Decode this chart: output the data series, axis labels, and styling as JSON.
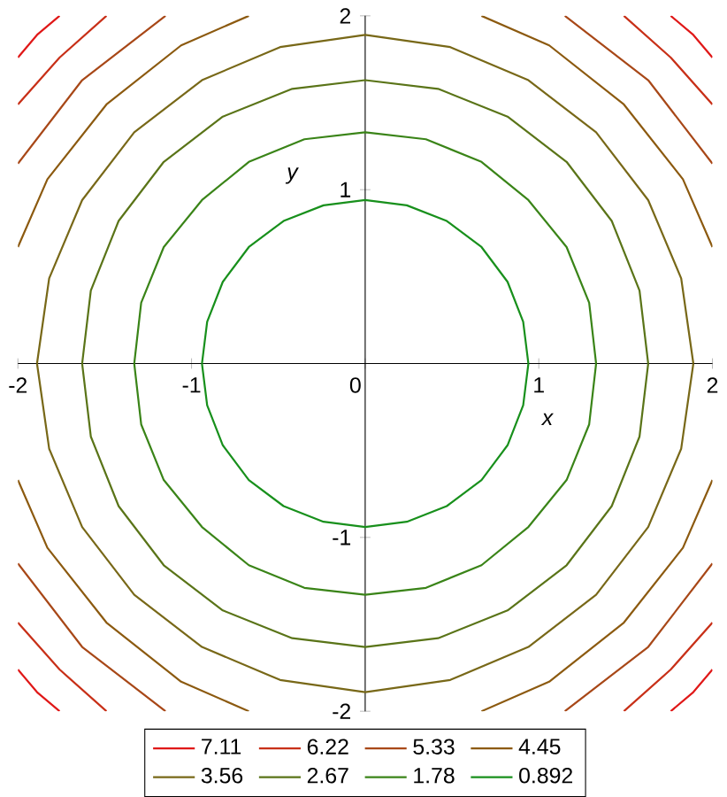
{
  "chart_data": {
    "type": "line",
    "xlabel": "x",
    "ylabel": "y",
    "xlim": [
      -2,
      2
    ],
    "ylim": [
      -2,
      2
    ],
    "xticks": [
      -2,
      -1,
      0,
      1,
      2
    ],
    "yticks": [
      -2,
      -1,
      1,
      2
    ],
    "grid": false,
    "legend": "bottom",
    "marker": "none",
    "line_style": "solid",
    "series": [
      {
        "name": "7.11",
        "color": "#e01818",
        "x": [
          2,
          1.89,
          1.76,
          null,
          -2,
          -1.89,
          -1.76,
          null,
          -2,
          -1.89,
          -1.76,
          null,
          2,
          1.89,
          1.76
        ],
        "values": [
          1.76,
          1.89,
          2,
          null,
          1.76,
          1.89,
          2,
          null,
          -1.76,
          -1.89,
          -2,
          null,
          -1.76,
          -1.89,
          -2
        ]
      },
      {
        "name": "6.22",
        "color": "#c83018",
        "x": [
          2,
          1.76,
          1.49,
          null,
          -2,
          -1.76,
          -1.49,
          null,
          -2,
          -1.76,
          -1.49,
          null,
          2,
          1.76,
          1.49
        ],
        "values": [
          1.49,
          1.76,
          2,
          null,
          1.49,
          1.76,
          2,
          null,
          -1.49,
          -1.76,
          -2,
          null,
          -1.49,
          -1.76,
          -2
        ]
      },
      {
        "name": "5.33",
        "color": "#a84818",
        "x": [
          2,
          1.63,
          1.15,
          null,
          -2,
          -1.63,
          -1.15,
          null,
          -2,
          -1.63,
          -1.15,
          null,
          2,
          1.63,
          1.15
        ],
        "values": [
          1.15,
          1.63,
          2,
          null,
          1.15,
          1.63,
          2,
          null,
          -1.15,
          -1.63,
          -2,
          null,
          -1.15,
          -1.63,
          -2
        ]
      },
      {
        "name": "4.45",
        "color": "#8c5a10",
        "x": [
          2,
          1.83,
          1.49,
          1.06,
          0.67,
          null,
          -2,
          -1.83,
          -1.49,
          -1.06,
          -0.67,
          null,
          -2,
          -1.83,
          -1.49,
          -1.06,
          -0.67,
          null,
          2,
          1.83,
          1.49,
          1.06,
          0.67
        ],
        "values": [
          0.67,
          1.06,
          1.49,
          1.83,
          2,
          null,
          0.67,
          1.06,
          1.49,
          1.83,
          2,
          null,
          -0.67,
          -1.06,
          -1.49,
          -1.83,
          -2,
          null,
          -0.67,
          -1.06,
          -1.49,
          -1.83,
          -2
        ]
      },
      {
        "name": "3.56",
        "color": "#786818",
        "x": [
          -1.89,
          -1.82,
          -1.63,
          -1.33,
          -0.94,
          -0.49,
          0,
          0.49,
          0.94,
          1.33,
          1.63,
          1.82,
          1.89,
          null,
          -1.89,
          -1.82,
          -1.63,
          -1.33,
          -0.94,
          -0.49,
          0,
          0.49,
          0.94,
          1.33,
          1.63,
          1.82,
          1.89
        ],
        "values": [
          0,
          0.49,
          0.94,
          1.33,
          1.63,
          1.82,
          1.89,
          1.82,
          1.63,
          1.33,
          0.94,
          0.49,
          0,
          null,
          0,
          -0.49,
          -0.94,
          -1.33,
          -1.63,
          -1.82,
          -1.89,
          -1.82,
          -1.63,
          -1.33,
          -0.94,
          -0.49,
          0
        ]
      },
      {
        "name": "2.67",
        "color": "#5a7418",
        "x": [
          -1.63,
          -1.58,
          -1.42,
          -1.16,
          -0.82,
          -0.42,
          0,
          0.42,
          0.82,
          1.16,
          1.42,
          1.58,
          1.63,
          null,
          -1.63,
          -1.58,
          -1.42,
          -1.16,
          -0.82,
          -0.42,
          0,
          0.42,
          0.82,
          1.16,
          1.42,
          1.58,
          1.63
        ],
        "values": [
          0,
          0.42,
          0.82,
          1.16,
          1.42,
          1.58,
          1.63,
          1.58,
          1.42,
          1.16,
          0.82,
          0.42,
          0,
          null,
          0,
          -0.42,
          -0.82,
          -1.16,
          -1.42,
          -1.58,
          -1.63,
          -1.58,
          -1.42,
          -1.16,
          -0.82,
          -0.42,
          0
        ]
      },
      {
        "name": "1.78",
        "color": "#3a8418",
        "x": [
          -1.33,
          -1.29,
          -1.16,
          -0.94,
          -0.67,
          -0.35,
          0,
          0.35,
          0.67,
          0.94,
          1.16,
          1.29,
          1.33,
          null,
          -1.33,
          -1.29,
          -1.16,
          -0.94,
          -0.67,
          -0.35,
          0,
          0.35,
          0.67,
          0.94,
          1.16,
          1.29,
          1.33
        ],
        "values": [
          0,
          0.35,
          0.67,
          0.94,
          1.16,
          1.29,
          1.33,
          1.29,
          1.16,
          0.94,
          0.67,
          0.35,
          0,
          null,
          0,
          -0.35,
          -0.67,
          -0.94,
          -1.16,
          -1.29,
          -1.33,
          -1.29,
          -1.16,
          -0.94,
          -0.67,
          -0.35,
          0
        ]
      },
      {
        "name": "0.892",
        "color": "#18901c",
        "x": [
          -0.94,
          -0.91,
          -0.82,
          -0.67,
          -0.47,
          -0.24,
          0,
          0.24,
          0.47,
          0.67,
          0.82,
          0.91,
          0.94,
          null,
          -0.94,
          -0.91,
          -0.82,
          -0.67,
          -0.47,
          -0.24,
          0,
          0.24,
          0.47,
          0.67,
          0.82,
          0.91,
          0.94
        ],
        "values": [
          0,
          0.24,
          0.47,
          0.67,
          0.82,
          0.91,
          0.94,
          0.91,
          0.82,
          0.67,
          0.47,
          0.24,
          0,
          null,
          0,
          -0.24,
          -0.47,
          -0.67,
          -0.82,
          -0.91,
          -0.94,
          -0.91,
          -0.82,
          -0.67,
          -0.47,
          -0.24,
          0
        ]
      }
    ]
  }
}
